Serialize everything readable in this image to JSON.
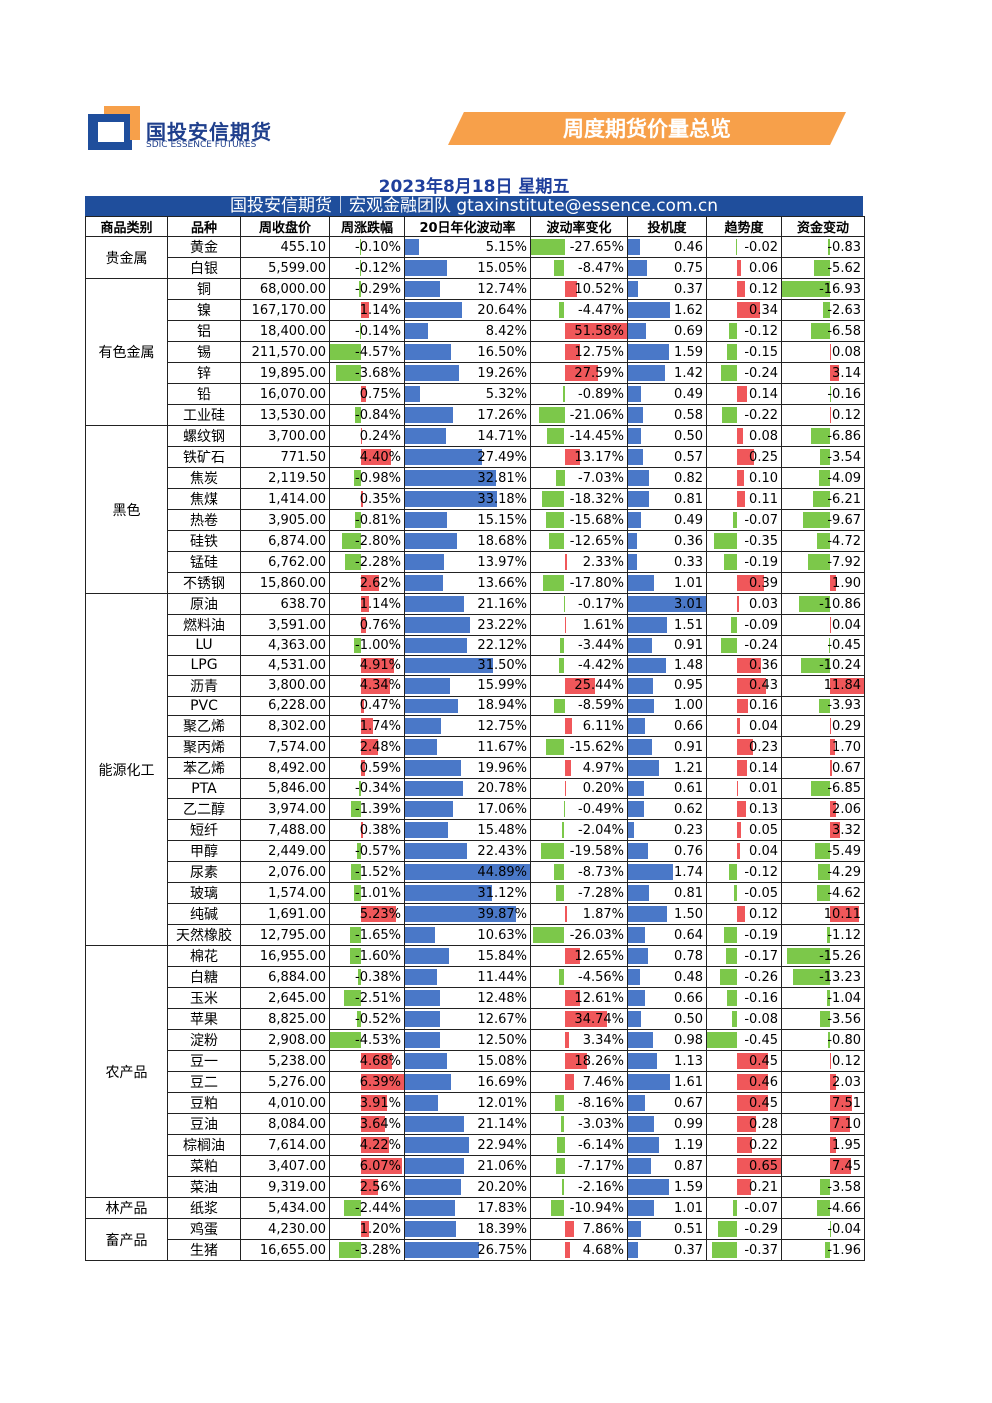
{
  "header": {
    "logo_cn": "国投安信期货",
    "logo_en": "SDIC ESSENCE FUTURES",
    "banner": "周度期货价量总览"
  },
  "date": "2023年8月18日 星期五",
  "subtitle": "国投安信期货｜宏观金融团队 gtaxinstitute@essence.com.cn",
  "table": {
    "columns": [
      "商品类别",
      "品种",
      "周收盘价",
      "周涨跌幅",
      "20日年化波动率",
      "波动率变化",
      "投机度",
      "趋势度",
      "资金变动"
    ],
    "groups": [
      {
        "category": "贵金属",
        "rows": [
          [
            "黄金",
            "455.10",
            "-0.10%",
            "5.15%",
            "-27.65%",
            "0.46",
            "-0.02",
            "-0.83"
          ],
          [
            "白银",
            "5,599.00",
            "-0.12%",
            "15.05%",
            "-8.47%",
            "0.75",
            "0.06",
            "-5.62"
          ]
        ]
      },
      {
        "category": "有色金属",
        "rows": [
          [
            "铜",
            "68,000.00",
            "-0.29%",
            "12.74%",
            "10.52%",
            "0.37",
            "0.12",
            "-16.93"
          ],
          [
            "镍",
            "167,170.00",
            "1.14%",
            "20.64%",
            "-4.47%",
            "1.62",
            "0.34",
            "-2.63"
          ],
          [
            "铝",
            "18,400.00",
            "-0.14%",
            "8.42%",
            "51.58%",
            "0.69",
            "-0.12",
            "-6.58"
          ],
          [
            "锡",
            "211,570.00",
            "-4.57%",
            "16.50%",
            "12.75%",
            "1.59",
            "-0.15",
            "0.08"
          ],
          [
            "锌",
            "19,895.00",
            "-3.68%",
            "19.26%",
            "27.59%",
            "1.42",
            "-0.24",
            "3.14"
          ],
          [
            "铅",
            "16,070.00",
            "0.75%",
            "5.32%",
            "-0.89%",
            "0.49",
            "0.14",
            "-0.16"
          ],
          [
            "工业硅",
            "13,530.00",
            "-0.84%",
            "17.26%",
            "-21.06%",
            "0.58",
            "-0.22",
            "0.12"
          ]
        ]
      },
      {
        "category": "黑色",
        "rows": [
          [
            "螺纹钢",
            "3,700.00",
            "0.24%",
            "14.71%",
            "-14.45%",
            "0.50",
            "0.08",
            "-6.86"
          ],
          [
            "铁矿石",
            "771.50",
            "4.40%",
            "27.49%",
            "13.17%",
            "0.57",
            "0.25",
            "-3.54"
          ],
          [
            "焦炭",
            "2,119.50",
            "-0.98%",
            "32.81%",
            "-7.03%",
            "0.82",
            "0.10",
            "-4.09"
          ],
          [
            "焦煤",
            "1,414.00",
            "0.35%",
            "33.18%",
            "-18.32%",
            "0.81",
            "0.11",
            "-6.21"
          ],
          [
            "热卷",
            "3,905.00",
            "-0.81%",
            "15.15%",
            "-15.68%",
            "0.49",
            "-0.07",
            "-9.67"
          ],
          [
            "硅铁",
            "6,874.00",
            "-2.80%",
            "18.68%",
            "-12.65%",
            "0.36",
            "-0.35",
            "-4.72"
          ],
          [
            "锰硅",
            "6,762.00",
            "-2.28%",
            "13.97%",
            "2.33%",
            "0.33",
            "-0.19",
            "-7.92"
          ],
          [
            "不锈钢",
            "15,860.00",
            "2.62%",
            "13.66%",
            "-17.80%",
            "1.01",
            "0.39",
            "1.90"
          ]
        ]
      },
      {
        "category": "能源化工",
        "rows": [
          [
            "原油",
            "638.70",
            "1.14%",
            "21.16%",
            "-0.17%",
            "3.01",
            "0.03",
            "-10.86"
          ],
          [
            "燃料油",
            "3,591.00",
            "0.76%",
            "23.22%",
            "1.61%",
            "1.51",
            "-0.09",
            "0.04"
          ],
          [
            "LU",
            "4,363.00",
            "-1.00%",
            "22.12%",
            "-3.44%",
            "0.91",
            "-0.24",
            "-0.45"
          ],
          [
            "LPG",
            "4,531.00",
            "4.91%",
            "31.50%",
            "-4.42%",
            "1.48",
            "0.36",
            "-10.24"
          ],
          [
            "沥青",
            "3,800.00",
            "4.34%",
            "15.99%",
            "25.44%",
            "0.95",
            "0.43",
            "11.84"
          ],
          [
            "PVC",
            "6,228.00",
            "0.47%",
            "18.94%",
            "-8.59%",
            "1.00",
            "0.16",
            "-3.93"
          ],
          [
            "聚乙烯",
            "8,302.00",
            "1.74%",
            "12.75%",
            "6.11%",
            "0.66",
            "0.04",
            "0.29"
          ],
          [
            "聚丙烯",
            "7,574.00",
            "2.48%",
            "11.67%",
            "-15.62%",
            "0.91",
            "0.23",
            "1.70"
          ],
          [
            "苯乙烯",
            "8,492.00",
            "0.59%",
            "19.96%",
            "4.97%",
            "1.21",
            "0.14",
            "0.67"
          ],
          [
            "PTA",
            "5,846.00",
            "-0.34%",
            "20.78%",
            "0.20%",
            "0.61",
            "0.01",
            "-6.85"
          ],
          [
            "乙二醇",
            "3,974.00",
            "-1.39%",
            "17.06%",
            "-0.49%",
            "0.62",
            "0.13",
            "2.06"
          ],
          [
            "短纤",
            "7,488.00",
            "0.38%",
            "15.48%",
            "-2.04%",
            "0.23",
            "0.05",
            "3.32"
          ],
          [
            "甲醇",
            "2,449.00",
            "-0.57%",
            "22.43%",
            "-19.58%",
            "0.76",
            "0.04",
            "-5.49"
          ],
          [
            "尿素",
            "2,076.00",
            "-1.52%",
            "44.89%",
            "-8.73%",
            "1.74",
            "-0.12",
            "-4.29"
          ],
          [
            "玻璃",
            "1,574.00",
            "-1.01%",
            "31.12%",
            "-7.28%",
            "0.81",
            "-0.05",
            "-4.62"
          ],
          [
            "纯碱",
            "1,691.00",
            "5.23%",
            "39.87%",
            "1.87%",
            "1.50",
            "0.12",
            "10.11"
          ],
          [
            "天然橡胶",
            "12,795.00",
            "-1.65%",
            "10.63%",
            "-26.03%",
            "0.64",
            "-0.19",
            "-1.12"
          ]
        ]
      },
      {
        "category": "农产品",
        "rows": [
          [
            "棉花",
            "16,955.00",
            "-1.60%",
            "15.84%",
            "12.65%",
            "0.78",
            "-0.17",
            "-15.26"
          ],
          [
            "白糖",
            "6,884.00",
            "-0.38%",
            "11.44%",
            "-4.56%",
            "0.48",
            "-0.26",
            "-13.23"
          ],
          [
            "玉米",
            "2,645.00",
            "-2.51%",
            "12.48%",
            "12.61%",
            "0.66",
            "-0.16",
            "-1.04"
          ],
          [
            "苹果",
            "8,825.00",
            "-0.52%",
            "12.67%",
            "34.74%",
            "0.50",
            "-0.08",
            "-3.56"
          ],
          [
            "淀粉",
            "2,908.00",
            "-4.53%",
            "12.50%",
            "3.34%",
            "0.98",
            "-0.45",
            "-0.80"
          ],
          [
            "豆一",
            "5,238.00",
            "4.68%",
            "15.08%",
            "18.26%",
            "1.13",
            "0.45",
            "0.12"
          ],
          [
            "豆二",
            "5,276.00",
            "6.39%",
            "16.69%",
            "7.46%",
            "1.61",
            "0.46",
            "2.03"
          ],
          [
            "豆粕",
            "4,010.00",
            "3.91%",
            "12.01%",
            "-8.16%",
            "0.67",
            "0.45",
            "7.51"
          ],
          [
            "豆油",
            "8,084.00",
            "3.64%",
            "21.14%",
            "-3.03%",
            "0.99",
            "0.28",
            "7.10"
          ],
          [
            "棕榈油",
            "7,614.00",
            "4.22%",
            "22.94%",
            "-6.14%",
            "1.19",
            "0.22",
            "1.95"
          ],
          [
            "菜粕",
            "3,407.00",
            "6.07%",
            "21.06%",
            "-7.17%",
            "0.87",
            "0.65",
            "7.45"
          ],
          [
            "菜油",
            "9,319.00",
            "2.56%",
            "20.20%",
            "-2.16%",
            "1.59",
            "0.21",
            "-3.58"
          ]
        ]
      },
      {
        "category": "林产品",
        "rows": [
          [
            "纸浆",
            "5,434.00",
            "-2.44%",
            "17.83%",
            "-10.94%",
            "1.01",
            "-0.07",
            "-4.66"
          ]
        ]
      },
      {
        "category": "畜产品",
        "rows": [
          [
            "鸡蛋",
            "4,230.00",
            "1.20%",
            "18.39%",
            "7.86%",
            "0.51",
            "-0.29",
            "-0.04"
          ],
          [
            "生猪",
            "16,655.00",
            "-3.28%",
            "26.75%",
            "4.68%",
            "0.37",
            "-0.37",
            "-1.96"
          ]
        ]
      }
    ]
  }
}
